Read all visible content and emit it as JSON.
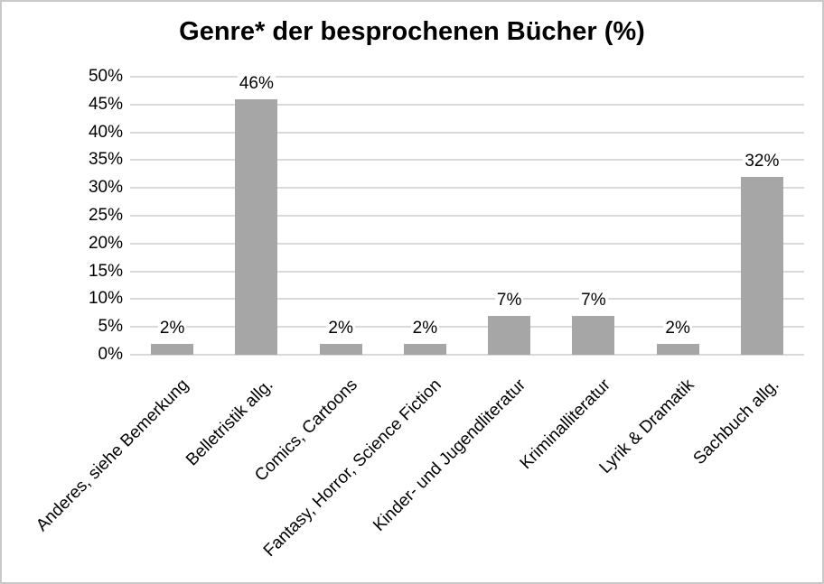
{
  "chart_data": {
    "type": "bar",
    "title": "Genre* der besprochenen Bücher (%)",
    "categories": [
      "Anderes, siehe Bemerkung",
      "Belletristik allg.",
      "Comics, Cartoons",
      "Fantasy, Horror, Science Fiction",
      "Kinder- und Jugendliteratur",
      "Kriminalliteratur",
      "Lyrik & Dramatik",
      "Sachbuch allg."
    ],
    "values": [
      2,
      46,
      2,
      2,
      7,
      7,
      2,
      32
    ],
    "data_labels": [
      "2%",
      "46%",
      "2%",
      "2%",
      "7%",
      "7%",
      "2%",
      "32%"
    ],
    "y_ticks": [
      0,
      5,
      10,
      15,
      20,
      25,
      30,
      35,
      40,
      45,
      50
    ],
    "y_tick_labels": [
      "0%",
      "5%",
      "10%",
      "15%",
      "20%",
      "25%",
      "30%",
      "35%",
      "40%",
      "45%",
      "50%"
    ],
    "ylim": [
      0,
      50
    ],
    "xlabel": "",
    "ylabel": "",
    "grid": true,
    "legend": false,
    "x_label_rotation_deg": 45,
    "colors": {
      "bar": "#a6a6a6",
      "gridline": "#d9d9d9",
      "axis_line": "#d9d9d9",
      "text": "#000000",
      "background": "#ffffff",
      "border": "#c9c9c9"
    }
  }
}
